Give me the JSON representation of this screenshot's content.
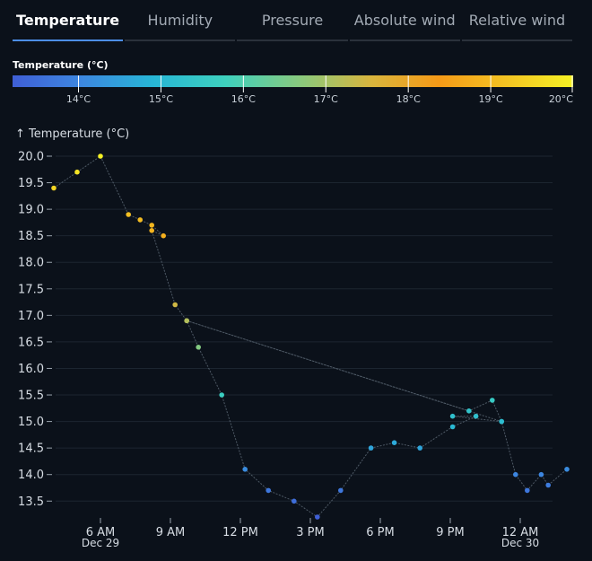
{
  "tabs": [
    {
      "label": "Temperature",
      "active": true
    },
    {
      "label": "Humidity",
      "active": false
    },
    {
      "label": "Pressure",
      "active": false
    },
    {
      "label": "Absolute wind",
      "active": false
    },
    {
      "label": "Relative wind",
      "active": false
    }
  ],
  "color_legend": {
    "title": "Temperature (°C)",
    "min": 13.2,
    "max": 20,
    "ticks": [
      "14°C",
      "15°C",
      "16°C",
      "17°C",
      "18°C",
      "19°C",
      "20°C"
    ],
    "tick_values": [
      14,
      15,
      16,
      17,
      18,
      19,
      20
    ]
  },
  "chart_data": {
    "type": "scatter",
    "ylabel": "↑ Temperature (°C)",
    "ylim": [
      13.2,
      20.1
    ],
    "yticks": [
      13.5,
      14.0,
      14.5,
      15.0,
      15.5,
      16.0,
      16.5,
      17.0,
      17.5,
      18.0,
      18.5,
      19.0,
      19.5,
      20.0
    ],
    "xlim_hours": [
      4.0,
      42.1
    ],
    "xticks": [
      {
        "hour": 6,
        "label": "6 AM",
        "sublabel": "Dec 29"
      },
      {
        "hour": 9,
        "label": "9 AM",
        "sublabel": ""
      },
      {
        "hour": 12,
        "label": "12 PM",
        "sublabel": ""
      },
      {
        "hour": 15,
        "label": "3 PM",
        "sublabel": ""
      },
      {
        "hour": 18,
        "label": "6 PM",
        "sublabel": ""
      },
      {
        "hour": 21,
        "label": "9 PM",
        "sublabel": ""
      },
      {
        "hour": 24,
        "label": "12 AM",
        "sublabel": "Dec 30"
      }
    ],
    "points": [
      {
        "x": 4.0,
        "y": 19.4
      },
      {
        "x": 5.0,
        "y": 19.7
      },
      {
        "x": 6.0,
        "y": 20.0
      },
      {
        "x": 7.2,
        "y": 18.9
      },
      {
        "x": 7.7,
        "y": 18.8
      },
      {
        "x": 8.2,
        "y": 18.7
      },
      {
        "x": 8.7,
        "y": 18.5
      },
      {
        "x": 8.2,
        "y": 18.6
      },
      {
        "x": 9.2,
        "y": 17.2
      },
      {
        "x": 9.7,
        "y": 16.9
      },
      {
        "x": 21.8,
        "y": 15.2
      },
      {
        "x": 22.8,
        "y": 15.4
      },
      {
        "x": 23.2,
        "y": 15.0
      },
      {
        "x": 21.1,
        "y": 15.1
      },
      {
        "x": 22.1,
        "y": 15.1
      },
      {
        "x": 21.1,
        "y": 14.9
      },
      {
        "x": 19.7,
        "y": 14.5
      },
      {
        "x": 18.6,
        "y": 14.6
      },
      {
        "x": 17.6,
        "y": 14.5
      },
      {
        "x": 16.3,
        "y": 13.7
      },
      {
        "x": 15.3,
        "y": 13.2
      },
      {
        "x": 14.3,
        "y": 13.5
      },
      {
        "x": 13.2,
        "y": 13.7
      },
      {
        "x": 12.2,
        "y": 14.1
      },
      {
        "x": 11.2,
        "y": 15.5
      },
      {
        "x": 10.2,
        "y": 16.4
      },
      {
        "x": 9.7,
        "y": 16.9
      },
      {
        "x": 23.2,
        "y": 15.0
      },
      {
        "x": 23.8,
        "y": 14.0
      },
      {
        "x": 24.3,
        "y": 13.7
      },
      {
        "x": 24.9,
        "y": 14.0
      },
      {
        "x": 25.2,
        "y": 13.8
      },
      {
        "x": 26.0,
        "y": 14.1
      }
    ]
  }
}
